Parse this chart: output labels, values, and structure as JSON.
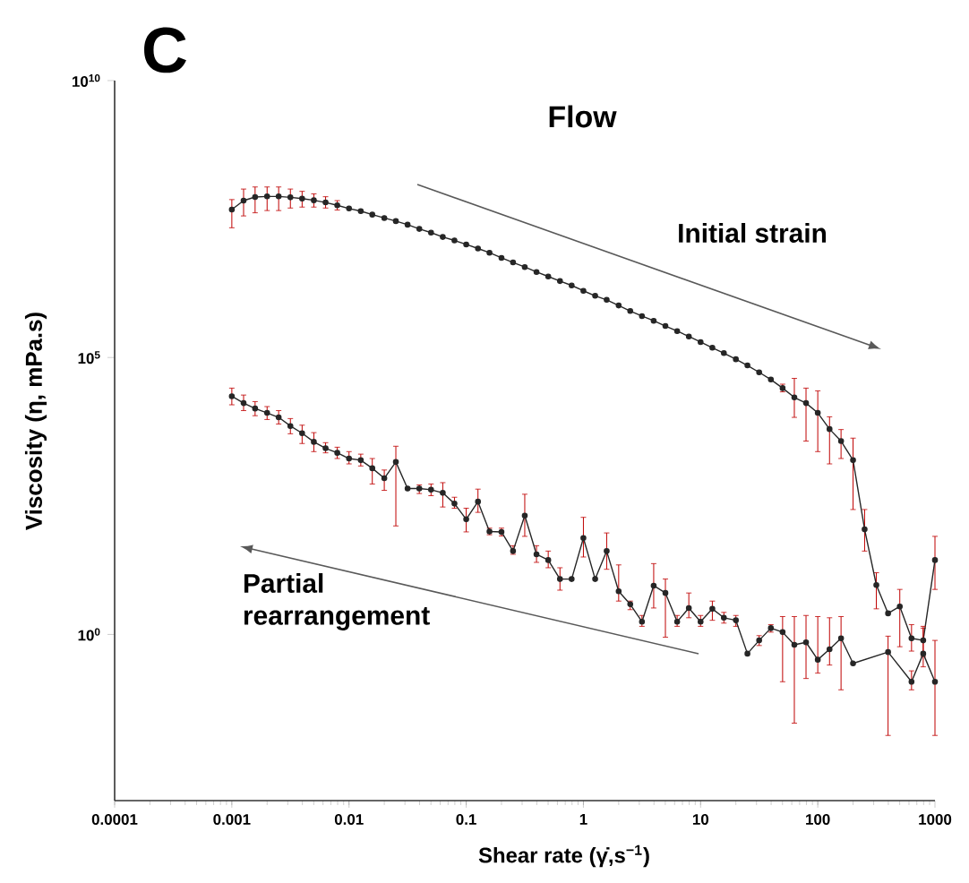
{
  "chart_data": {
    "type": "line",
    "title": "Flow",
    "xlabel": "Shear rate (γ̇,s$^{−1}$)",
    "ylabel": "Viscosity (η, mPa.s)",
    "annotations": [
      "C",
      "Initial strain",
      "Partial rearrangement"
    ],
    "log": "xy",
    "marker": "circle",
    "line_style": "solid",
    "xlim": [
      0.0001,
      1000
    ],
    "xticks": [
      0.0001,
      0.001,
      0.01,
      0.1,
      1,
      10,
      100,
      1000
    ],
    "ylim": [
      0.001,
      10000000000
    ],
    "yticks": [
      {
        "value": 1,
        "label": "10$^{0}$"
      },
      {
        "value": 100000,
        "label": "10$^{5}$"
      },
      {
        "value": 10000000000,
        "label": "10$^{10}$"
      }
    ],
    "series": [
      {
        "color": "#262626",
        "x": [
          0.001,
          0.00126,
          0.00158,
          0.002,
          0.00251,
          0.00316,
          0.00398,
          0.00501,
          0.00631,
          0.00794,
          0.01,
          0.0126,
          0.0158,
          0.02,
          0.0251,
          0.0316,
          0.0398,
          0.0501,
          0.0631,
          0.0794,
          0.1,
          0.126,
          0.158,
          0.2,
          0.251,
          0.316,
          0.398,
          0.501,
          0.631,
          0.794,
          1,
          1.26,
          1.58,
          2,
          2.51,
          3.16,
          3.98,
          5.01,
          6.31,
          7.94,
          10,
          12.6,
          15.8,
          20,
          25.1,
          31.6,
          39.8,
          50.1,
          63.1,
          79.4,
          100,
          126,
          158,
          200,
          251,
          316,
          398,
          501,
          631,
          794,
          1000
        ],
        "values": [
          47000000.0,
          68000000.0,
          79000000.0,
          81000000.0,
          81000000.0,
          78000000.0,
          74000000.0,
          69000000.0,
          63000000.0,
          56000000.0,
          49000000.0,
          44000000.0,
          38000000.0,
          33000000.0,
          29000000.0,
          25000000.0,
          21000000.0,
          18000000.0,
          15000000.0,
          13000000.0,
          11000000.0,
          9300000.0,
          7800000.0,
          6300000.0,
          5200000.0,
          4300000.0,
          3500000.0,
          2900000.0,
          2400000.0,
          2000000.0,
          1600000.0,
          1300000.0,
          1100000.0,
          870000.0,
          690000.0,
          560000.0,
          460000.0,
          370000.0,
          300000.0,
          240000.0,
          190000.0,
          150000.0,
          120000.0,
          93000.0,
          72000.0,
          54000.0,
          40000.0,
          28000.0,
          19000.0,
          15000.0,
          10000.0,
          5100,
          3100,
          1400,
          79,
          7.8,
          2.4,
          3.2,
          0.85,
          0.78,
          22
        ],
        "errors": [
          [
            22000000.0,
            71000000.0
          ],
          [
            36000000.0,
            110000000.0
          ],
          [
            41000000.0,
            120000000.0
          ],
          [
            45000000.0,
            120000000.0
          ],
          [
            45000000.0,
            120000000.0
          ],
          [
            50000000.0,
            110000000.0
          ],
          [
            52000000.0,
            100000000.0
          ],
          [
            52000000.0,
            90000000.0
          ],
          [
            50000000.0,
            80000000.0
          ],
          [
            46000000.0,
            68000000.0
          ],
          null,
          null,
          null,
          null,
          null,
          null,
          null,
          null,
          null,
          null,
          null,
          null,
          null,
          null,
          null,
          null,
          null,
          null,
          null,
          null,
          null,
          null,
          null,
          null,
          null,
          null,
          null,
          null,
          null,
          null,
          null,
          null,
          null,
          null,
          null,
          null,
          null,
          [
            24000.0,
            33000.0
          ],
          [
            8300.0,
            42000.0
          ],
          [
            3100.0,
            28000.0
          ],
          [
            2000.0,
            25000.0
          ],
          [
            1200,
            8500
          ],
          [
            1500,
            5000
          ],
          [
            180,
            3500
          ],
          [
            32,
            180
          ],
          [
            2.9,
            13
          ],
          null,
          [
            0.6,
            6.5
          ],
          [
            0.5,
            1.5
          ],
          [
            0.4,
            1.3
          ],
          [
            6.5,
            59
          ]
        ]
      },
      {
        "color": "#262626",
        "x": [
          0.001,
          0.00126,
          0.00158,
          0.002,
          0.00251,
          0.00316,
          0.00398,
          0.00501,
          0.00631,
          0.00794,
          0.01,
          0.0126,
          0.0158,
          0.02,
          0.0251,
          0.0316,
          0.0398,
          0.0501,
          0.0631,
          0.0794,
          0.1,
          0.126,
          0.158,
          0.2,
          0.251,
          0.316,
          0.398,
          0.501,
          0.631,
          0.794,
          1,
          1.26,
          1.58,
          2,
          2.51,
          3.16,
          3.98,
          5.01,
          6.31,
          7.94,
          10,
          12.6,
          15.8,
          20,
          25.1,
          31.6,
          39.8,
          50.1,
          63.1,
          79.4,
          100,
          126,
          158,
          200,
          398,
          631,
          794,
          1000
        ],
        "values": [
          20000.0,
          15000.0,
          12000.0,
          10000.0,
          8300,
          5800,
          4300,
          3000,
          2300,
          1900,
          1500,
          1400,
          1000,
          660,
          1300,
          430,
          430,
          410,
          360,
          230,
          120,
          250,
          72,
          71,
          32,
          140,
          28,
          22,
          10,
          10,
          55,
          10,
          32,
          6.0,
          3.5,
          1.7,
          7.6,
          5.6,
          1.7,
          3.0,
          1.7,
          2.9,
          2.0,
          1.8,
          0.45,
          0.78,
          1.3,
          1.1,
          0.65,
          0.72,
          0.35,
          0.54,
          0.85,
          0.3,
          0.48,
          0.14,
          0.45,
          0.14
        ],
        "errors": [
          [
            14000.0,
            28000.0
          ],
          [
            11000.0,
            21000.0
          ],
          [
            8900,
            16000.0
          ],
          [
            7600,
            13000.0
          ],
          [
            6300,
            11000.0
          ],
          [
            4200,
            7900
          ],
          [
            2800,
            6000
          ],
          [
            2000,
            4400
          ],
          [
            1900,
            2900
          ],
          [
            1500,
            2400
          ],
          [
            1200,
            2000
          ],
          [
            1100,
            1800
          ],
          [
            520,
            1500
          ],
          [
            400,
            930
          ],
          [
            91,
            2500
          ],
          null,
          [
            350,
            500
          ],
          [
            320,
            520
          ],
          [
            200,
            550
          ],
          [
            190,
            300
          ],
          [
            71,
            190
          ],
          [
            160,
            420
          ],
          [
            63,
            83
          ],
          [
            60,
            83
          ],
          [
            28,
            40
          ],
          [
            59,
            340
          ],
          [
            20,
            40
          ],
          [
            16,
            32
          ],
          [
            6.3,
            16
          ],
          null,
          [
            25,
            130
          ],
          null,
          [
            15,
            68
          ],
          [
            4.0,
            18
          ],
          [
            2.8,
            4.0
          ],
          [
            1.4,
            2.2
          ],
          [
            3.0,
            19
          ],
          [
            0.89,
            10
          ],
          [
            1.4,
            2.2
          ],
          [
            2.0,
            5.6
          ],
          [
            1.4,
            2.2
          ],
          [
            1.8,
            4.0
          ],
          [
            1.6,
            2.5
          ],
          [
            1.4,
            2.2
          ],
          null,
          [
            0.63,
            0.95
          ],
          [
            1.1,
            1.5
          ],
          [
            0.14,
            2.1
          ],
          [
            0.025,
            2.1
          ],
          [
            0.16,
            2.2
          ],
          [
            0.2,
            2.1
          ],
          [
            0.28,
            2.0
          ],
          [
            0.1,
            2.1
          ],
          null,
          [
            0.015,
            0.93
          ],
          [
            0.1,
            0.22
          ],
          [
            0.26,
            1.4
          ],
          [
            0.015,
            0.78
          ]
        ]
      }
    ]
  }
}
